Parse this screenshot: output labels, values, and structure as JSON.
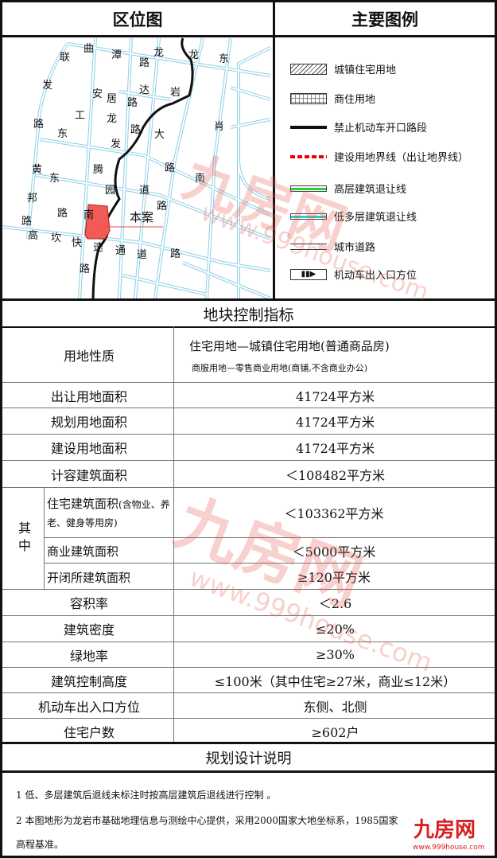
{
  "headers": {
    "location_map": "区位图",
    "legend": "主要图例",
    "controls": "地块控制指标",
    "notes": "规划设计说明"
  },
  "map": {
    "site_label": "本案",
    "labels": [
      "联",
      "曲",
      "潭",
      "龙",
      "路",
      "龙",
      "东",
      "发",
      "安",
      "居",
      "达",
      "岩",
      "路",
      "工",
      "龙",
      "路",
      "路",
      "大",
      "肖",
      "东",
      "发",
      "黄",
      "东",
      "腾",
      "路",
      "南",
      "园",
      "道",
      "邦",
      "路",
      "路",
      "南",
      "路",
      "高",
      "坎",
      "快",
      "速",
      "通",
      "道",
      "路",
      "路"
    ]
  },
  "legend": [
    {
      "label": "城镇住宅用地",
      "icon": "hatch-swatch"
    },
    {
      "label": "商住用地",
      "icon": "grid-swatch"
    },
    {
      "label": "禁止机动车开口路段",
      "icon": "black-line-swatch"
    },
    {
      "label": "建设用地界线（出让地界线）",
      "icon": "red-dash-swatch"
    },
    {
      "label": "高层建筑退让线",
      "icon": "green-line-swatch"
    },
    {
      "label": "低多层建筑退让线",
      "icon": "cyan-line-swatch"
    },
    {
      "label": "城市道路",
      "icon": "road-swatch"
    },
    {
      "label": "机动车出入口方位",
      "icon": "entrance-arrow-swatch"
    }
  ],
  "table": {
    "land_use": {
      "label": "用地性质",
      "value1": "住宅用地—城镇住宅用地(普通商品房)",
      "value2": "商服用地—零售商业用地(商铺,不含商业办公)"
    },
    "rows": [
      {
        "label": "出让用地面积",
        "value": "41724平方米"
      },
      {
        "label": "规划用地面积",
        "value": "41724平方米"
      },
      {
        "label": "建设用地面积",
        "value": "41724平方米"
      },
      {
        "label": "计容建筑面积",
        "value": "＜108482平方米"
      }
    ],
    "of_which_label": "其中",
    "sub_rows": [
      {
        "label": "住宅建筑面积",
        "label_note": "(含物业、养老、健身等用房)",
        "value": "＜103362平方米"
      },
      {
        "label": "商业建筑面积",
        "value": "＜5000平方米"
      },
      {
        "label": "开闭所建筑面积",
        "value": "≥120平方米"
      }
    ],
    "rows2": [
      {
        "label": "容积率",
        "value": "＜2.6"
      },
      {
        "label": "建筑密度",
        "value": "≤20%"
      },
      {
        "label": "绿地率",
        "value": "≥30%"
      },
      {
        "label": "建筑控制高度",
        "value": "≤100米（其中住宅≥27米，商业≤12米）"
      },
      {
        "label": "机动车出入口方位",
        "value": "东侧、北侧"
      },
      {
        "label": "住宅户数",
        "value": "≥602户"
      }
    ]
  },
  "notes": [
    "1 低、多层建筑后退线未标注时按高层建筑后退线进行控制 。",
    "2 本图地形为龙岩市基础地理信息与测绘中心提供，采用2000国家大地坐标系，1985国家",
    "高程基准。"
  ],
  "watermark": {
    "brand": "九房网",
    "url": "www.999house.com"
  },
  "colors": {
    "site": "#f25a55",
    "road": "#8ccfe6",
    "border": "#111111"
  }
}
